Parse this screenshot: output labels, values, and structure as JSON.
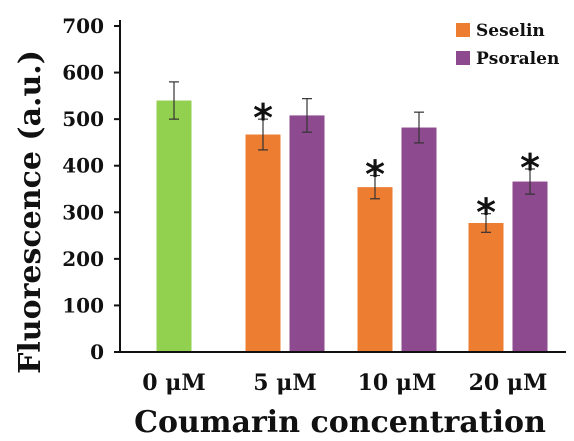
{
  "chart_data": {
    "type": "bar",
    "xlabel": "Coumarin concentration",
    "ylabel": "Fluorescence (a.u.)",
    "ylim": [
      0,
      700
    ],
    "yticks": [
      0,
      100,
      200,
      300,
      400,
      500,
      600,
      700
    ],
    "grid": false,
    "legend_placement": "top-right",
    "categories": [
      "0 μM",
      "5 μM",
      "10 μM",
      "20 μM"
    ],
    "series": [
      {
        "key": "control",
        "values": [
          540,
          null,
          null,
          null
        ],
        "errors": [
          40,
          null,
          null,
          null
        ],
        "color": "#92d050"
      },
      {
        "key": "seselin",
        "name": "Seselin",
        "values": [
          null,
          467,
          354,
          277
        ],
        "errors": [
          null,
          33,
          25,
          20
        ],
        "significant": [
          false,
          true,
          true,
          true
        ],
        "color": "#ed7d31"
      },
      {
        "key": "psoralen",
        "name": "Psoralen",
        "values": [
          null,
          508,
          482,
          366
        ],
        "errors": [
          null,
          36,
          33,
          27
        ],
        "significant": [
          false,
          false,
          false,
          true
        ],
        "color": "#8e4a8e"
      }
    ],
    "significance_marker": "*"
  }
}
